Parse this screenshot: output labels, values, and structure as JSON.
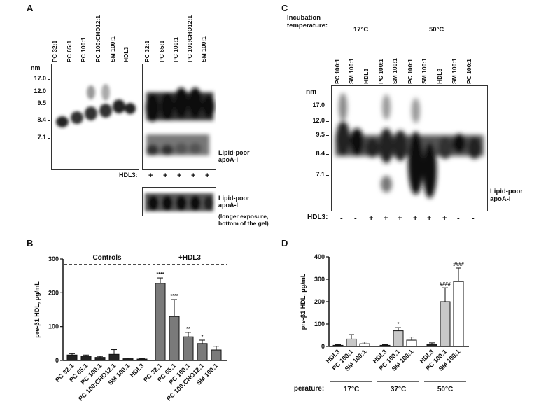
{
  "panels": {
    "A": {
      "letter": "A",
      "lanes": [
        "PC 32:1",
        "PC 65:1",
        "PC 100:1",
        "PC 100:CHO12:1",
        "SM 100:1",
        "HDL3",
        "PC 32:1",
        "PC 65:1",
        "PC 100:1",
        "PC 100:CHO12:1",
        "SM 100:1"
      ],
      "nm_label": "nm",
      "sizes": [
        "17.0",
        "12.0",
        "9.5",
        "8.4",
        "7.1"
      ],
      "lipid_poor": "Lipid-poor\napoA-I",
      "hdl3_row_label": "HDL3:",
      "hdl3_signs": [
        "+",
        "+",
        "+",
        "+",
        "+"
      ],
      "exposure_note": "(longer exposure,\nbottom of the gel)"
    },
    "C": {
      "letter": "C",
      "incubation_label": "Incubation\ntemperature:",
      "temp_groups": [
        "17°C",
        "50°C"
      ],
      "lanes": [
        "PC 100:1",
        "SM 100:1",
        "HDL3",
        "PC 100:1",
        "SM 100:1",
        "PC 100:1",
        "SM 100:1",
        "HDL3",
        "SM 100:1",
        "PC 100:1"
      ],
      "nm_label": "nm",
      "sizes": [
        "17.0",
        "12.0",
        "9.5",
        "8.4",
        "7.1"
      ],
      "lipid_poor": "Lipid-poor\napoA-I",
      "hdl3_row_label": "HDL3:",
      "hdl3_signs": [
        "-",
        "-",
        "+",
        "+",
        "+",
        "+",
        "+",
        "+",
        "-",
        "-"
      ]
    },
    "B": {
      "letter": "B",
      "controls_label": "Controls",
      "hdl3_label": "+HDL3"
    },
    "D": {
      "letter": "D",
      "temperature_label": "Temperature:",
      "temp_groups": [
        "17°C",
        "37°C",
        "50°C"
      ]
    }
  },
  "chart_data": [
    {
      "type": "bar",
      "panel": "B",
      "ylabel": "pre-β1 HDL, μg/mL",
      "ylim": [
        0,
        300
      ],
      "yticks": [
        0,
        100,
        200,
        300
      ],
      "categories": [
        "PC 32:1",
        "PC 65:1",
        "PC 100:1",
        "PC 100:CHO12:1",
        "SM 100:1",
        "HDL3",
        "PC 32:1",
        "PC 65:1",
        "PC 100:1",
        "PC 100:CHO12:1",
        "SM 100:1"
      ],
      "values": [
        16,
        13,
        9,
        18,
        5,
        4,
        228,
        130,
        70,
        50,
        31
      ],
      "errors": [
        4,
        3,
        3,
        14,
        2,
        2,
        16,
        50,
        13,
        10,
        11
      ],
      "fills": [
        "#222222",
        "#222222",
        "#222222",
        "#222222",
        "#222222",
        "#222222",
        "#7a7a7a",
        "#7a7a7a",
        "#7a7a7a",
        "#7a7a7a",
        "#7a7a7a"
      ],
      "significance": [
        "",
        "",
        "",
        "",
        "",
        "",
        "****",
        "****",
        "**",
        "*",
        ""
      ]
    },
    {
      "type": "bar",
      "panel": "D",
      "ylabel": "pre-β1 HDL, μg/mL",
      "ylim": [
        0,
        400
      ],
      "yticks": [
        0,
        100,
        200,
        300,
        400
      ],
      "categories": [
        "HDL3",
        "PC 100:1",
        "SM 100:1",
        "HDL3",
        "PC 100:1",
        "SM 100:1",
        "HDL3",
        "PC 100:1",
        "SM 100:1"
      ],
      "values": [
        5,
        33,
        12,
        5,
        70,
        28,
        10,
        200,
        290
      ],
      "errors": [
        3,
        20,
        8,
        3,
        14,
        14,
        6,
        62,
        60
      ],
      "fills": [
        "#222222",
        "#c8c8c8",
        "#ffffff",
        "#222222",
        "#c8c8c8",
        "#ffffff",
        "#222222",
        "#c8c8c8",
        "#ffffff"
      ],
      "significance": [
        "",
        "",
        "",
        "",
        "*",
        "",
        "",
        "####",
        "####"
      ]
    }
  ],
  "colors": {
    "dark_bar": "#222222",
    "gray_bar": "#7a7a7a",
    "light_bar": "#c8c8c8",
    "white_bar": "#ffffff"
  }
}
